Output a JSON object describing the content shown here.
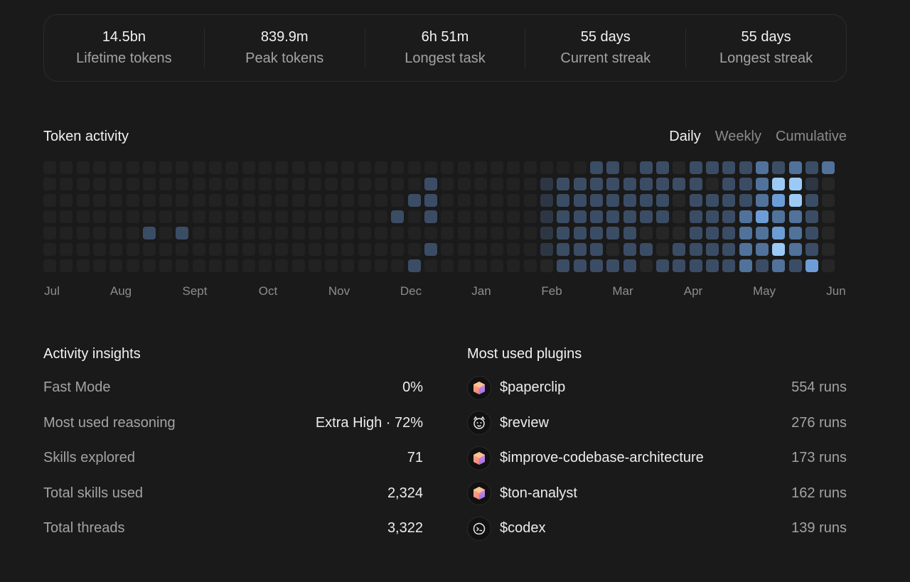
{
  "stats": [
    {
      "value": "14.5bn",
      "label": "Lifetime tokens"
    },
    {
      "value": "839.9m",
      "label": "Peak tokens"
    },
    {
      "value": "6h 51m",
      "label": "Longest task"
    },
    {
      "value": "55 days",
      "label": "Current streak"
    },
    {
      "value": "55 days",
      "label": "Longest streak"
    }
  ],
  "token_activity": {
    "title": "Token activity",
    "views": [
      "Daily",
      "Weekly",
      "Cumulative"
    ],
    "active_view": "Daily",
    "months": [
      "Jul",
      "Aug",
      "Sept",
      "Oct",
      "Nov",
      "Dec",
      "Jan",
      "Feb",
      "Mar",
      "Apr",
      "May",
      "Jun"
    ],
    "levels": [
      [
        0,
        0,
        0,
        0,
        0,
        0,
        0,
        0,
        0,
        0,
        0,
        0,
        0,
        0,
        0,
        0,
        0,
        0,
        0,
        0,
        0,
        0,
        0,
        0,
        0,
        0,
        0,
        0,
        0,
        0,
        0,
        0,
        0,
        3,
        3,
        1,
        3,
        3,
        1,
        3,
        3,
        3,
        3,
        4,
        3,
        4,
        3,
        4
      ],
      [
        0,
        0,
        0,
        0,
        0,
        0,
        0,
        0,
        0,
        0,
        0,
        0,
        0,
        0,
        0,
        0,
        0,
        0,
        0,
        0,
        0,
        0,
        0,
        3,
        0,
        0,
        0,
        0,
        0,
        0,
        2,
        3,
        3,
        3,
        3,
        3,
        3,
        3,
        3,
        3,
        1,
        3,
        3,
        4,
        6,
        6,
        2,
        1
      ],
      [
        0,
        0,
        0,
        0,
        0,
        0,
        0,
        0,
        0,
        0,
        0,
        0,
        0,
        0,
        0,
        0,
        0,
        0,
        0,
        0,
        0,
        0,
        3,
        3,
        0,
        0,
        0,
        0,
        0,
        0,
        2,
        3,
        3,
        3,
        3,
        3,
        3,
        3,
        1,
        3,
        3,
        3,
        3,
        4,
        5,
        6,
        3,
        -1
      ],
      [
        0,
        0,
        0,
        0,
        0,
        0,
        0,
        0,
        0,
        0,
        0,
        0,
        0,
        0,
        0,
        0,
        0,
        0,
        0,
        0,
        0,
        3,
        0,
        3,
        0,
        0,
        0,
        0,
        0,
        0,
        2,
        3,
        3,
        3,
        3,
        3,
        3,
        3,
        1,
        3,
        3,
        3,
        4,
        5,
        4,
        4,
        3,
        -1
      ],
      [
        0,
        0,
        0,
        0,
        0,
        0,
        3,
        0,
        3,
        0,
        0,
        0,
        0,
        0,
        0,
        0,
        0,
        0,
        0,
        0,
        0,
        0,
        0,
        0,
        0,
        0,
        0,
        0,
        0,
        0,
        2,
        3,
        3,
        3,
        3,
        3,
        1,
        1,
        1,
        3,
        3,
        3,
        4,
        4,
        5,
        4,
        3,
        -1
      ],
      [
        0,
        0,
        0,
        0,
        0,
        0,
        0,
        0,
        0,
        0,
        0,
        0,
        0,
        0,
        0,
        0,
        0,
        0,
        0,
        0,
        0,
        0,
        0,
        3,
        0,
        0,
        0,
        0,
        0,
        0,
        2,
        3,
        3,
        3,
        1,
        3,
        3,
        1,
        3,
        3,
        3,
        3,
        4,
        4,
        6,
        4,
        3,
        -1
      ],
      [
        0,
        0,
        0,
        0,
        0,
        0,
        0,
        0,
        0,
        0,
        0,
        0,
        0,
        0,
        0,
        0,
        0,
        0,
        0,
        0,
        0,
        0,
        3,
        0,
        0,
        0,
        0,
        0,
        0,
        0,
        1,
        3,
        3,
        3,
        3,
        3,
        1,
        3,
        3,
        3,
        3,
        3,
        4,
        3,
        4,
        3,
        5,
        -1
      ]
    ],
    "colors": {
      "empty": "#222222",
      "faint": "#262626",
      "low": "#2d3744",
      "mid": "#3b4d65",
      "high": "#50729b",
      "higher": "#6d9dd6",
      "highest": "#9ccaf6"
    }
  },
  "insights": {
    "title": "Activity insights",
    "rows": [
      {
        "label": "Fast Mode",
        "value": "0%"
      },
      {
        "label": "Most used reasoning",
        "value": "Extra High · 72%"
      },
      {
        "label": "Skills explored",
        "value": "71"
      },
      {
        "label": "Total skills used",
        "value": "2,324"
      },
      {
        "label": "Total threads",
        "value": "3,322"
      }
    ]
  },
  "plugins": {
    "title": "Most used plugins",
    "items": [
      {
        "name": "$paperclip",
        "runs": "554 runs",
        "icon": "gem-icon"
      },
      {
        "name": "$review",
        "runs": "276 runs",
        "icon": "mascot-icon"
      },
      {
        "name": "$improve-codebase-architecture",
        "runs": "173 runs",
        "icon": "gem-icon"
      },
      {
        "name": "$ton-analyst",
        "runs": "162 runs",
        "icon": "gem-icon"
      },
      {
        "name": "$codex",
        "runs": "139 runs",
        "icon": "codex-icon"
      }
    ]
  }
}
